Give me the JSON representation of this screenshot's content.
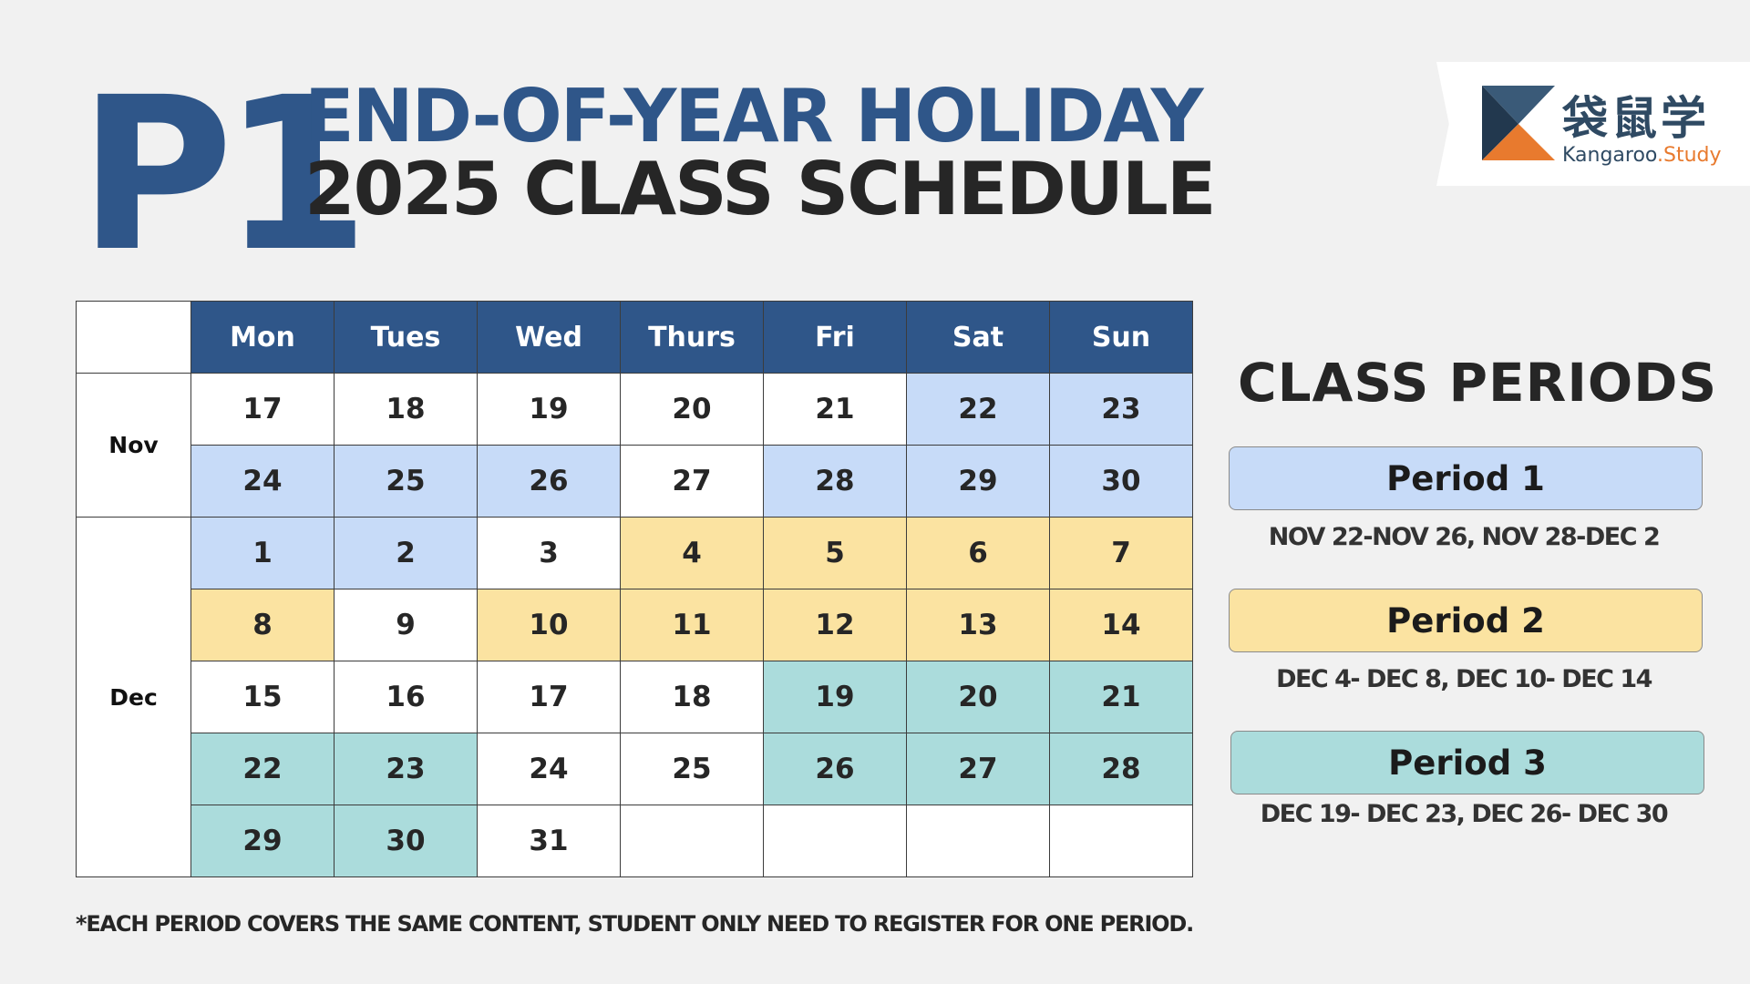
{
  "header": {
    "grade": "P1",
    "title_line1": "END-OF-YEAR HOLIDAY",
    "title_line2": "2025 CLASS SCHEDULE"
  },
  "logo": {
    "chinese": "袋鼠学",
    "brand": "Kangaroo",
    "brand_suffix": ".Study"
  },
  "calendar": {
    "days": [
      "Mon",
      "Tues",
      "Wed",
      "Thurs",
      "Fri",
      "Sat",
      "Sun"
    ],
    "months": [
      "Nov",
      "Dec"
    ],
    "weeks": [
      {
        "cells": [
          {
            "d": "17",
            "p": "w"
          },
          {
            "d": "18",
            "p": "w"
          },
          {
            "d": "19",
            "p": "w"
          },
          {
            "d": "20",
            "p": "w"
          },
          {
            "d": "21",
            "p": "w"
          },
          {
            "d": "22",
            "p": "p1"
          },
          {
            "d": "23",
            "p": "p1"
          }
        ]
      },
      {
        "cells": [
          {
            "d": "24",
            "p": "p1"
          },
          {
            "d": "25",
            "p": "p1"
          },
          {
            "d": "26",
            "p": "p1"
          },
          {
            "d": "27",
            "p": "w"
          },
          {
            "d": "28",
            "p": "p1"
          },
          {
            "d": "29",
            "p": "p1"
          },
          {
            "d": "30",
            "p": "p1"
          }
        ]
      },
      {
        "cells": [
          {
            "d": "1",
            "p": "p1"
          },
          {
            "d": "2",
            "p": "p1"
          },
          {
            "d": "3",
            "p": "w"
          },
          {
            "d": "4",
            "p": "p2"
          },
          {
            "d": "5",
            "p": "p2"
          },
          {
            "d": "6",
            "p": "p2"
          },
          {
            "d": "7",
            "p": "p2"
          }
        ]
      },
      {
        "cells": [
          {
            "d": "8",
            "p": "p2"
          },
          {
            "d": "9",
            "p": "w"
          },
          {
            "d": "10",
            "p": "p2"
          },
          {
            "d": "11",
            "p": "p2"
          },
          {
            "d": "12",
            "p": "p2"
          },
          {
            "d": "13",
            "p": "p2"
          },
          {
            "d": "14",
            "p": "p2"
          }
        ]
      },
      {
        "cells": [
          {
            "d": "15",
            "p": "w"
          },
          {
            "d": "16",
            "p": "w"
          },
          {
            "d": "17",
            "p": "w"
          },
          {
            "d": "18",
            "p": "w"
          },
          {
            "d": "19",
            "p": "p3"
          },
          {
            "d": "20",
            "p": "p3"
          },
          {
            "d": "21",
            "p": "p3"
          }
        ]
      },
      {
        "cells": [
          {
            "d": "22",
            "p": "p3"
          },
          {
            "d": "23",
            "p": "p3"
          },
          {
            "d": "24",
            "p": "w"
          },
          {
            "d": "25",
            "p": "w"
          },
          {
            "d": "26",
            "p": "p3"
          },
          {
            "d": "27",
            "p": "p3"
          },
          {
            "d": "28",
            "p": "p3"
          }
        ]
      },
      {
        "cells": [
          {
            "d": "29",
            "p": "p3"
          },
          {
            "d": "30",
            "p": "p3"
          },
          {
            "d": "31",
            "p": "w"
          },
          {
            "d": "",
            "p": "e"
          },
          {
            "d": "",
            "p": "e"
          },
          {
            "d": "",
            "p": "e"
          },
          {
            "d": "",
            "p": "e"
          }
        ]
      }
    ]
  },
  "class_periods": {
    "title": "CLASS PERIODS",
    "periods": [
      {
        "label": "Period 1",
        "dates": "NOV 22-NOV 26, NOV 28-DEC 2",
        "color": "#c7dbf8"
      },
      {
        "label": "Period 2",
        "dates": "DEC 4- DEC 8, DEC 10- DEC 14",
        "color": "#fbe3a1"
      },
      {
        "label": "Period 3",
        "dates": "DEC 19- DEC 23, DEC 26- DEC 30",
        "color": "#abdcdc"
      }
    ]
  },
  "footnote": "*EACH PERIOD COVERS THE SAME  CONTENT, STUDENT ONLY NEED TO REGISTER FOR ONE PERIOD.",
  "colors": {
    "brand_blue": "#2f5689",
    "background": "#f1f1f1",
    "text_dark": "#262626"
  }
}
